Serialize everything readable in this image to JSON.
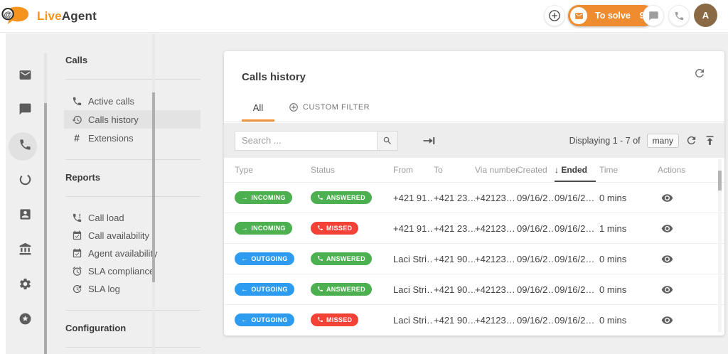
{
  "topbar": {
    "brand": {
      "first": "Live",
      "second": "Agent"
    },
    "to_solve": {
      "label": "To solve",
      "count": "9"
    },
    "avatar_initial": "A"
  },
  "rail": {
    "items": [
      {
        "icon": "mail-icon",
        "active": false
      },
      {
        "icon": "chat-icon",
        "active": false
      },
      {
        "icon": "phone-icon",
        "active": true
      },
      {
        "icon": "ring-icon",
        "active": false
      },
      {
        "icon": "contact-card-icon",
        "active": false
      },
      {
        "icon": "bank-icon",
        "active": false
      },
      {
        "icon": "gear-icon",
        "active": false
      },
      {
        "icon": "star-icon",
        "active": false
      }
    ]
  },
  "nav": {
    "sections": [
      {
        "title": "Calls",
        "items": [
          {
            "icon": "phone-icon",
            "label": "Active calls",
            "active": false
          },
          {
            "icon": "history-icon",
            "label": "Calls history",
            "active": true
          },
          {
            "icon": "hash-icon",
            "label": "Extensions",
            "active": false
          }
        ]
      },
      {
        "title": "Reports",
        "items": [
          {
            "icon": "call-load-icon",
            "label": "Call load",
            "active": false
          },
          {
            "icon": "calendar-check-icon",
            "label": "Call availability",
            "active": false
          },
          {
            "icon": "calendar-check-icon",
            "label": "Agent availability",
            "active": false
          },
          {
            "icon": "alarm-icon",
            "label": "SLA compliance",
            "active": false
          },
          {
            "icon": "update-icon",
            "label": "SLA log",
            "active": false
          }
        ]
      },
      {
        "title": "Configuration",
        "items": []
      }
    ]
  },
  "main": {
    "title": "Calls history",
    "tabs": [
      {
        "label": "All",
        "active": true
      },
      {
        "label": "CUSTOM FILTER",
        "active": false,
        "icon": "plus-circle-icon"
      }
    ],
    "toolbar": {
      "search_placeholder": "Search ...",
      "displaying_label": "Displaying 1 - 7 of",
      "total_badge": "many"
    },
    "table": {
      "headers": [
        "Type",
        "Status",
        "From",
        "To",
        "Via number",
        "Created",
        "Ended",
        "Time",
        "Actions"
      ],
      "sorted_by": "Ended",
      "sort_direction": "↓",
      "rows": [
        {
          "type": "INCOMING",
          "status": "ANSWERED",
          "from": "+421 91…",
          "to": "+421 23…",
          "via_number": "+42123…",
          "created": "09/16/2…",
          "ended": "09/16/2…",
          "time": "0 mins"
        },
        {
          "type": "INCOMING",
          "status": "MISSED",
          "from": "+421 91…",
          "to": "+421 23…",
          "via_number": "+42123…",
          "created": "09/16/2…",
          "ended": "09/16/2…",
          "time": "1 mins"
        },
        {
          "type": "OUTGOING",
          "status": "ANSWERED",
          "from": "Laci Stri…",
          "to": "+421 90…",
          "via_number": "+42123…",
          "created": "09/16/2…",
          "ended": "09/16/2…",
          "time": "0 mins"
        },
        {
          "type": "OUTGOING",
          "status": "ANSWERED",
          "from": "Laci Stri…",
          "to": "+421 90…",
          "via_number": "+42123…",
          "created": "09/16/2…",
          "ended": "09/16/2…",
          "time": "0 mins"
        },
        {
          "type": "OUTGOING",
          "status": "MISSED",
          "from": "Laci Stri…",
          "to": "+421 90…",
          "via_number": "+42123…",
          "created": "09/16/2…",
          "ended": "09/16/2…",
          "time": "0 mins"
        }
      ]
    }
  },
  "colors": {
    "brand_orange": "#f6931e",
    "pill_orange": "#ef8c30",
    "tab_underline_orange": "#f0953c",
    "incoming_green": "#4caf50",
    "answered_green": "#4caf50",
    "outgoing_blue": "#2d9cf0",
    "missed_red": "#f44336",
    "avatar_brown": "#8a6a45"
  }
}
